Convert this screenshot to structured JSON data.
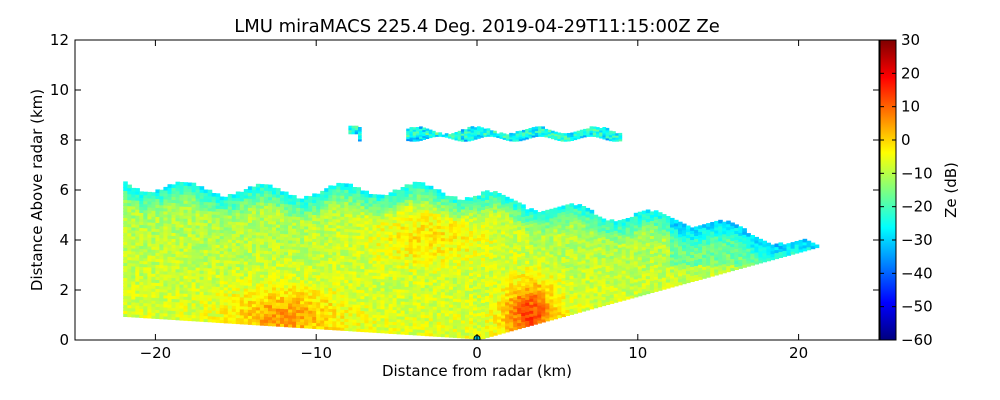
{
  "chart_data": {
    "type": "heatmap",
    "title": "LMU miraMACS 225.4 Deg. 2019-04-29T11:15:00Z  Ze",
    "xlabel": "Distance from radar (km)",
    "ylabel": "Distance Above radar  (km)",
    "xlim": [
      -25,
      25
    ],
    "ylim": [
      0,
      12
    ],
    "xticks": [
      -20,
      -10,
      0,
      10,
      20
    ],
    "xtick_labels": [
      "−20",
      "−10",
      "0",
      "10",
      "20"
    ],
    "yticks": [
      0,
      2,
      4,
      6,
      8,
      10,
      12
    ],
    "ytick_labels": [
      "0",
      "2",
      "4",
      "6",
      "8",
      "10",
      "12"
    ],
    "colorbar": {
      "label": "Ze (dB)",
      "range": [
        -60,
        30
      ],
      "ticks": [
        30,
        20,
        10,
        0,
        -10,
        -20,
        -30,
        -40,
        -50,
        -60
      ],
      "tick_labels": [
        "30",
        "20",
        "10",
        "0",
        "−10",
        "−20",
        "−30",
        "−40",
        "−50",
        "−60"
      ],
      "colormap": "jet",
      "colors": [
        "#00007f",
        "#0000ff",
        "#007fff",
        "#00ffff",
        "#7fff7f",
        "#ffff00",
        "#ff7f00",
        "#ff0000",
        "#7f0000"
      ]
    },
    "echo_regions": [
      {
        "name": "main-precipitation-sector",
        "x_km": [
          -22,
          21.7
        ],
        "top_km": [
          6.2,
          4.4
        ],
        "bottom_km": [
          0.9,
          3.8
        ],
        "typical_ze_db": -5
      },
      {
        "name": "upper-cloud-layer",
        "x_km": [
          -8,
          9
        ],
        "y_km": [
          7.9,
          8.6
        ],
        "typical_ze_db": -25
      },
      {
        "name": "melting-layer-core",
        "x_km": [
          1.5,
          6
        ],
        "y_km": [
          0,
          2.8
        ],
        "peak_ze_db": 28
      },
      {
        "name": "left-enhanced-region",
        "x_km": [
          -15,
          -9
        ],
        "y_km": [
          0.2,
          2.2
        ],
        "typical_ze_db": 12
      }
    ]
  }
}
